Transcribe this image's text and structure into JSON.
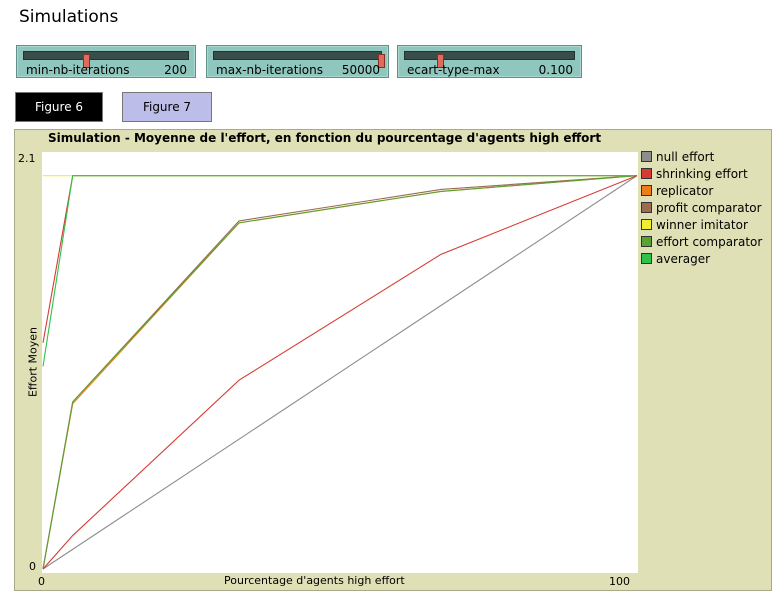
{
  "page_title": "Simulations",
  "sliders": [
    {
      "label": "min-nb-iterations",
      "value": "200",
      "position": 0.38
    },
    {
      "label": "max-nb-iterations",
      "value": "50000",
      "position": 1.0
    },
    {
      "label": "ecart-type-max",
      "value": "0.100",
      "position": 0.21
    }
  ],
  "buttons": {
    "figure6": "Figure 6",
    "figure7": "Figure 7"
  },
  "chart_data": {
    "type": "line",
    "title": "Simulation - Moyenne de l'effort, en fonction du pourcentage d'agents high effort",
    "xlabel": "Pourcentage d'agents high effort",
    "ylabel": "Effort Moyen",
    "xlim": [
      0,
      100
    ],
    "ylim": [
      0,
      2.1
    ],
    "x_ticks": [
      "0",
      "100"
    ],
    "y_ticks": [
      "0",
      "2.1"
    ],
    "grid": false,
    "legend_position": "right",
    "series": [
      {
        "name": "null effort",
        "color": "#8d8d8d",
        "points": [
          [
            0,
            0
          ],
          [
            100,
            2.0
          ]
        ]
      },
      {
        "name": "shrinking effort",
        "color": "#d73a32",
        "points": [
          [
            0,
            1.15
          ],
          [
            5,
            2.0
          ],
          [
            100,
            2.0
          ]
        ]
      },
      {
        "name": "replicator",
        "color": "#ed7f1b",
        "points": [
          [
            0,
            0
          ],
          [
            5,
            0.84
          ],
          [
            33,
            1.76
          ],
          [
            67,
            1.92
          ],
          [
            100,
            2.0
          ]
        ]
      },
      {
        "name": "profit comparator",
        "color": "#9c6c4f",
        "points": [
          [
            0,
            0
          ],
          [
            5,
            0.85
          ],
          [
            33,
            1.77
          ],
          [
            67,
            1.93
          ],
          [
            100,
            2.0
          ]
        ]
      },
      {
        "name": "winner imitator",
        "color": "#efef2d",
        "points": [
          [
            0,
            2.0
          ],
          [
            100,
            2.0
          ]
        ]
      },
      {
        "name": "effort comparator",
        "color": "#5aa232",
        "points": [
          [
            0,
            0
          ],
          [
            5,
            0.85
          ],
          [
            33,
            1.76
          ],
          [
            67,
            1.92
          ],
          [
            100,
            2.0
          ]
        ]
      },
      {
        "name": "averager",
        "color": "#2fc14a",
        "points": [
          [
            0,
            1.03
          ],
          [
            5,
            2.0
          ],
          [
            100,
            2.0
          ]
        ]
      }
    ],
    "extra_series": [
      {
        "name": "shrinking effort (lower)",
        "color": "#d73a32",
        "points": [
          [
            0,
            0
          ],
          [
            5,
            0.17
          ],
          [
            33,
            0.96
          ],
          [
            67,
            1.6
          ],
          [
            100,
            2.0
          ]
        ]
      }
    ]
  }
}
